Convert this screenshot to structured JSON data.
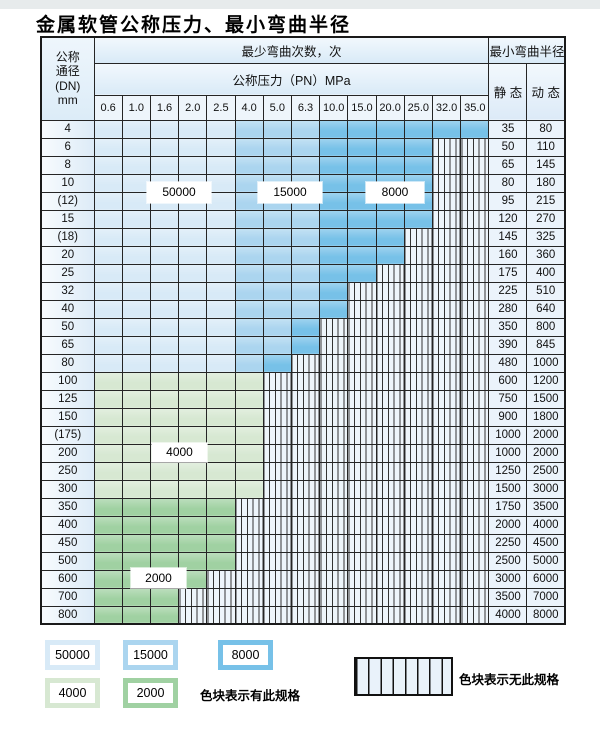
{
  "title": "金属软管公称压力、最小弯曲半径",
  "colors": {
    "cycles_50000": "#d8eaf7",
    "cycles_15000": "#abd5ef",
    "cycles_8000": "#77c1e8",
    "cycles_4000": "#d7e8d2",
    "cycles_2000": "#a0d1a2",
    "no_spec_bg": "#eef5fb",
    "grid_line": "#252525"
  },
  "table": {
    "header": {
      "dn_lines": [
        "公称",
        "通径",
        "(DN)",
        "mm"
      ],
      "bend_cycles_label": "最少弯曲次数，次",
      "pressure_label": "公称压力（PN）MPa",
      "pressures": [
        "0.6",
        "1.0",
        "1.6",
        "2.0",
        "2.5",
        "4.0",
        "5.0",
        "6.3",
        "10.0",
        "15.0",
        "20.0",
        "25.0",
        "32.0",
        "35.0"
      ],
      "radius_label": "最小弯曲半径",
      "static_label": "静 态",
      "dynamic_label": "动 态"
    },
    "overlay_labels": [
      "50000",
      "15000",
      "8000",
      "4000",
      "2000"
    ],
    "rows": [
      {
        "dn": "4",
        "zone": "blue",
        "last": 13,
        "static": "35",
        "dynamic": "80"
      },
      {
        "dn": "6",
        "zone": "blue",
        "last": 11,
        "static": "50",
        "dynamic": "110"
      },
      {
        "dn": "8",
        "zone": "blue",
        "last": 11,
        "static": "65",
        "dynamic": "145"
      },
      {
        "dn": "10",
        "zone": "blue",
        "last": 11,
        "static": "80",
        "dynamic": "180"
      },
      {
        "dn": "(12)",
        "zone": "blue",
        "last": 11,
        "static": "95",
        "dynamic": "215"
      },
      {
        "dn": "15",
        "zone": "blue",
        "last": 11,
        "static": "120",
        "dynamic": "270"
      },
      {
        "dn": "(18)",
        "zone": "blue",
        "last": 10,
        "static": "145",
        "dynamic": "325"
      },
      {
        "dn": "20",
        "zone": "blue",
        "last": 10,
        "static": "160",
        "dynamic": "360"
      },
      {
        "dn": "25",
        "zone": "blue",
        "last": 9,
        "static": "175",
        "dynamic": "400"
      },
      {
        "dn": "32",
        "zone": "blue",
        "last": 8,
        "static": "225",
        "dynamic": "510"
      },
      {
        "dn": "40",
        "zone": "blue",
        "last": 8,
        "static": "280",
        "dynamic": "640"
      },
      {
        "dn": "50",
        "zone": "blue",
        "last": 7,
        "static": "350",
        "dynamic": "800"
      },
      {
        "dn": "65",
        "zone": "blue",
        "last": 7,
        "static": "390",
        "dynamic": "845"
      },
      {
        "dn": "80",
        "zone": "blue",
        "last": 6,
        "static": "480",
        "dynamic": "1000"
      },
      {
        "dn": "100",
        "zone": "green4",
        "last": 5,
        "static": "600",
        "dynamic": "1200"
      },
      {
        "dn": "125",
        "zone": "green4",
        "last": 5,
        "static": "750",
        "dynamic": "1500"
      },
      {
        "dn": "150",
        "zone": "green4",
        "last": 5,
        "static": "900",
        "dynamic": "1800"
      },
      {
        "dn": "(175)",
        "zone": "green4",
        "last": 5,
        "static": "1000",
        "dynamic": "2000"
      },
      {
        "dn": "200",
        "zone": "green4",
        "last": 5,
        "static": "1000",
        "dynamic": "2000"
      },
      {
        "dn": "250",
        "zone": "green4",
        "last": 5,
        "static": "1250",
        "dynamic": "2500"
      },
      {
        "dn": "300",
        "zone": "green4",
        "last": 5,
        "static": "1500",
        "dynamic": "3000"
      },
      {
        "dn": "350",
        "zone": "green2",
        "last": 4,
        "static": "1750",
        "dynamic": "3500"
      },
      {
        "dn": "400",
        "zone": "green2",
        "last": 4,
        "static": "2000",
        "dynamic": "4000"
      },
      {
        "dn": "450",
        "zone": "green2",
        "last": 4,
        "static": "2250",
        "dynamic": "4500"
      },
      {
        "dn": "500",
        "zone": "green2",
        "last": 4,
        "static": "2500",
        "dynamic": "5000"
      },
      {
        "dn": "600",
        "zone": "green2",
        "last": 3,
        "static": "3000",
        "dynamic": "6000"
      },
      {
        "dn": "700",
        "zone": "green2",
        "last": 2,
        "static": "3500",
        "dynamic": "7000"
      },
      {
        "dn": "800",
        "zone": "green2",
        "last": 2,
        "static": "4000",
        "dynamic": "8000"
      }
    ]
  },
  "legend": {
    "swatches": [
      {
        "label": "50000"
      },
      {
        "label": "15000"
      },
      {
        "label": "8000"
      },
      {
        "label": "4000"
      },
      {
        "label": "2000"
      }
    ],
    "has_spec_note": "色块表示有此规格",
    "no_spec_note": "色块表示无此规格"
  }
}
